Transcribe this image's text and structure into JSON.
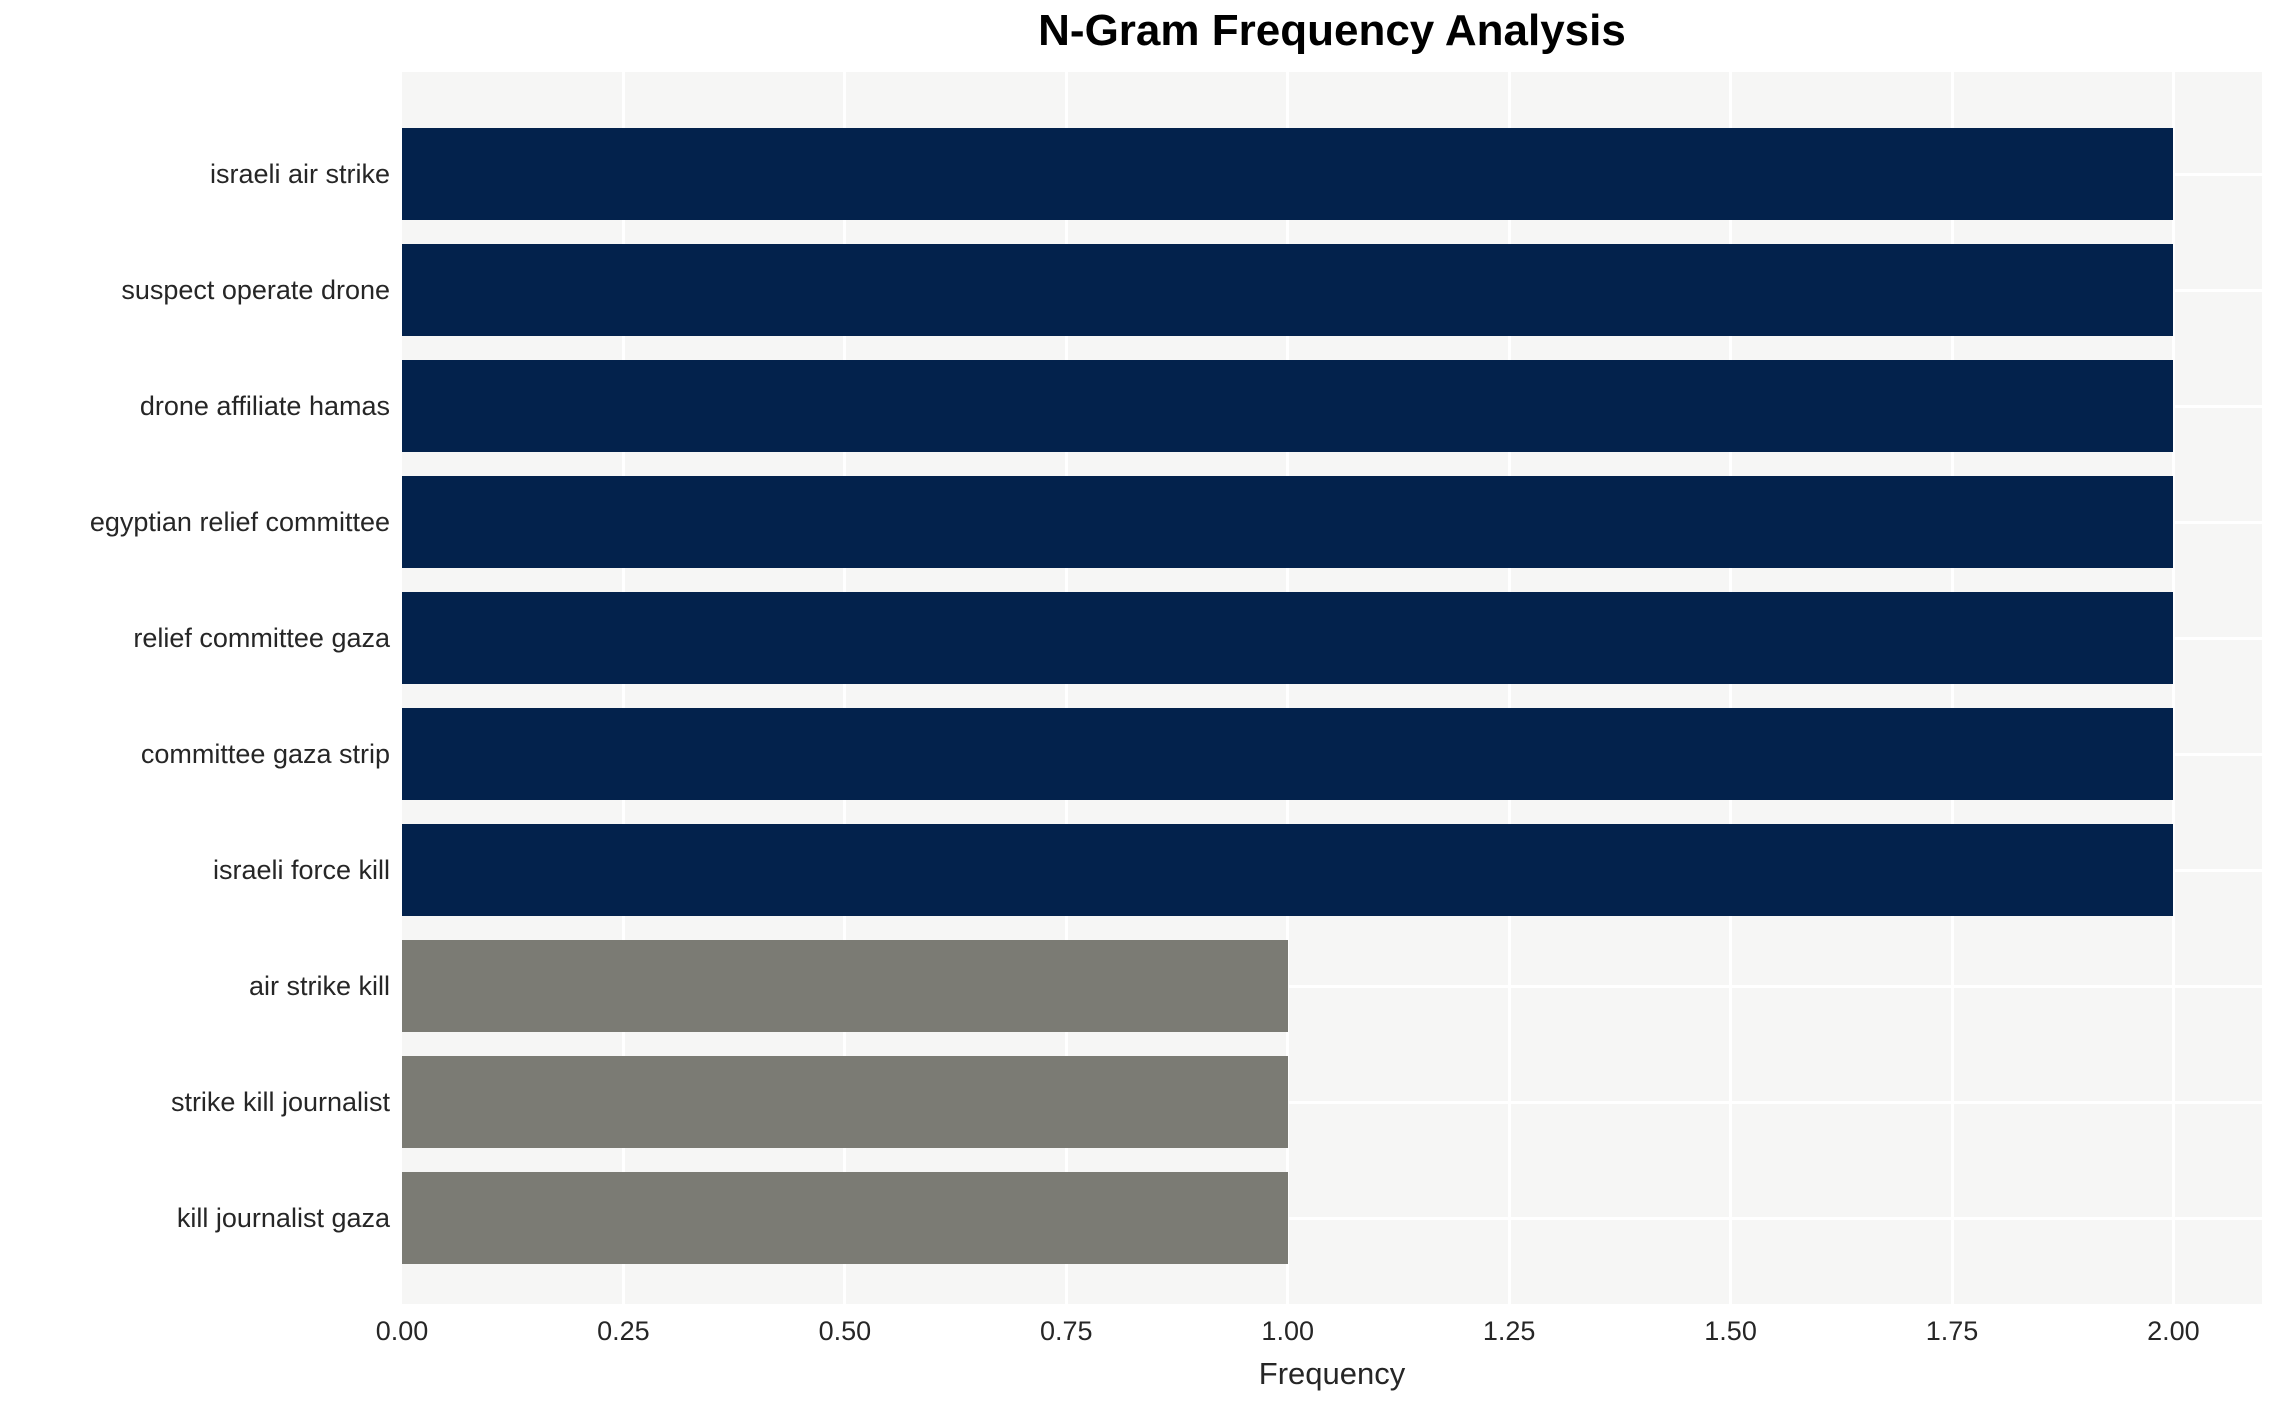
{
  "title": "N-Gram Frequency Analysis",
  "chart_data": {
    "type": "bar",
    "orientation": "horizontal",
    "title": "N-Gram Frequency Analysis",
    "categories": [
      "israeli air strike",
      "suspect operate drone",
      "drone affiliate hamas",
      "egyptian relief committee",
      "relief committee gaza",
      "committee gaza strip",
      "israeli force kill",
      "air strike kill",
      "strike kill journalist",
      "kill journalist gaza"
    ],
    "values": [
      2,
      2,
      2,
      2,
      2,
      2,
      2,
      1,
      1,
      1
    ],
    "bar_colors": [
      "#03224c",
      "#03224c",
      "#03224c",
      "#03224c",
      "#03224c",
      "#03224c",
      "#03224c",
      "#7b7b74",
      "#7b7b74",
      "#7b7b74"
    ],
    "xlabel": "Frequency",
    "ylabel": "",
    "xlim": [
      0,
      2.1
    ],
    "xticks": [
      {
        "value": 0.0,
        "label": "0.00"
      },
      {
        "value": 0.25,
        "label": "0.25"
      },
      {
        "value": 0.5,
        "label": "0.50"
      },
      {
        "value": 0.75,
        "label": "0.75"
      },
      {
        "value": 1.0,
        "label": "1.00"
      },
      {
        "value": 1.25,
        "label": "1.25"
      },
      {
        "value": 1.5,
        "label": "1.50"
      },
      {
        "value": 1.75,
        "label": "1.75"
      },
      {
        "value": 2.0,
        "label": "2.00"
      }
    ],
    "grid": true,
    "legend": "none",
    "style": {
      "plot_background": "#f6f6f5",
      "grid_color": "#ffffff",
      "bar_color_high": "#03224c",
      "bar_color_low": "#7b7b74",
      "text_color": "#262626",
      "title_color": "#000000"
    }
  }
}
